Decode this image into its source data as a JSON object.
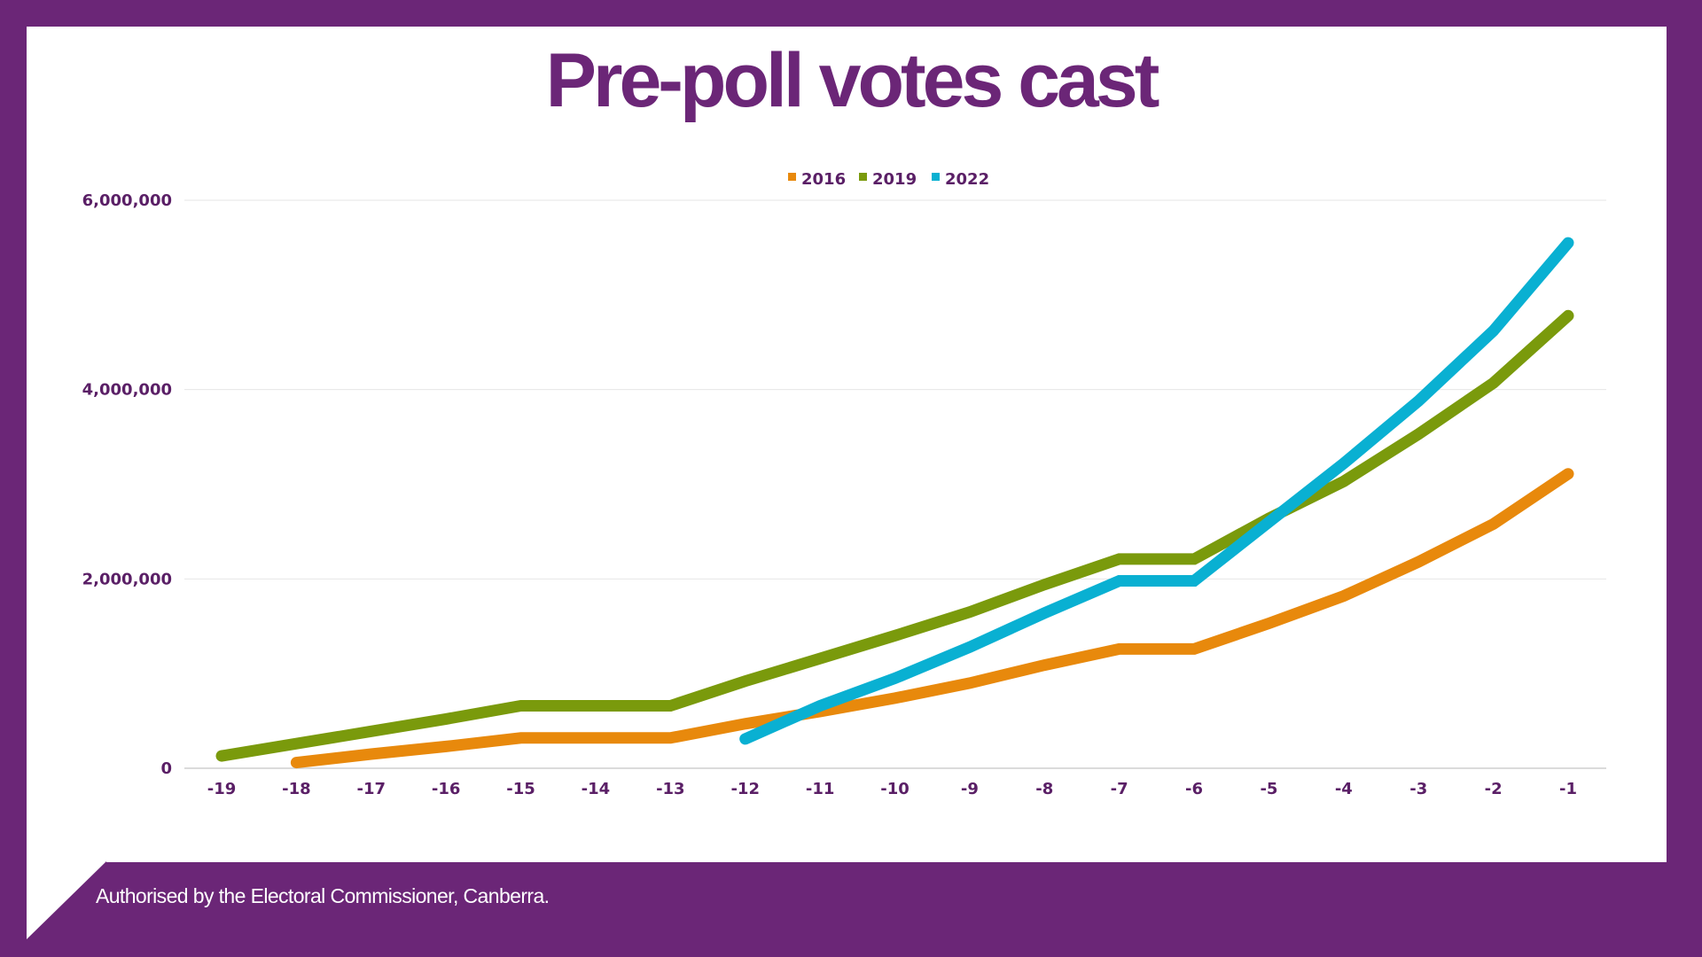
{
  "colors": {
    "frame": "#6b2677",
    "title": "#6b2677",
    "axis_text": "#5a1f66",
    "series_2016": "#e8890c",
    "series_2019": "#7a9a0c",
    "series_2022": "#09b0d2"
  },
  "chart_data": {
    "type": "line",
    "title": "Pre-poll votes cast",
    "xlabel": "",
    "ylabel": "",
    "x": [
      -19,
      -18,
      -17,
      -16,
      -15,
      -14,
      -13,
      -12,
      -11,
      -10,
      -9,
      -8,
      -7,
      -6,
      -5,
      -4,
      -3,
      -2,
      -1
    ],
    "x_tick_labels": [
      "-19",
      "-18",
      "-17",
      "-16",
      "-15",
      "-14",
      "-13",
      "-12",
      "-11",
      "-10",
      "-9",
      "-8",
      "-7",
      "-6",
      "-5",
      "-4",
      "-3",
      "-2",
      "-1"
    ],
    "ylim": [
      0,
      6000000
    ],
    "y_ticks": [
      0,
      2000000,
      4000000,
      6000000
    ],
    "y_tick_labels": [
      "0",
      "2,000,000",
      "4,000,000",
      "6,000,000"
    ],
    "grid": true,
    "legend_position": "top-center",
    "series": [
      {
        "name": "2016",
        "color": "#e8890c",
        "values": [
          null,
          60000,
          150000,
          230000,
          320000,
          320000,
          320000,
          470000,
          600000,
          740000,
          900000,
          1090000,
          1260000,
          1260000,
          1530000,
          1820000,
          2180000,
          2580000,
          3110000
        ]
      },
      {
        "name": "2019",
        "color": "#7a9a0c",
        "values": [
          130000,
          260000,
          390000,
          520000,
          660000,
          660000,
          660000,
          920000,
          1160000,
          1400000,
          1650000,
          1940000,
          2210000,
          2210000,
          2640000,
          3030000,
          3530000,
          4070000,
          4780000
        ]
      },
      {
        "name": "2022",
        "color": "#09b0d2",
        "values": [
          null,
          null,
          null,
          null,
          null,
          null,
          null,
          310000,
          660000,
          950000,
          1280000,
          1640000,
          1980000,
          1980000,
          2600000,
          3220000,
          3880000,
          4620000,
          5550000
        ]
      }
    ]
  },
  "footer": {
    "text": "Authorised by the Electoral Commissioner, Canberra."
  }
}
